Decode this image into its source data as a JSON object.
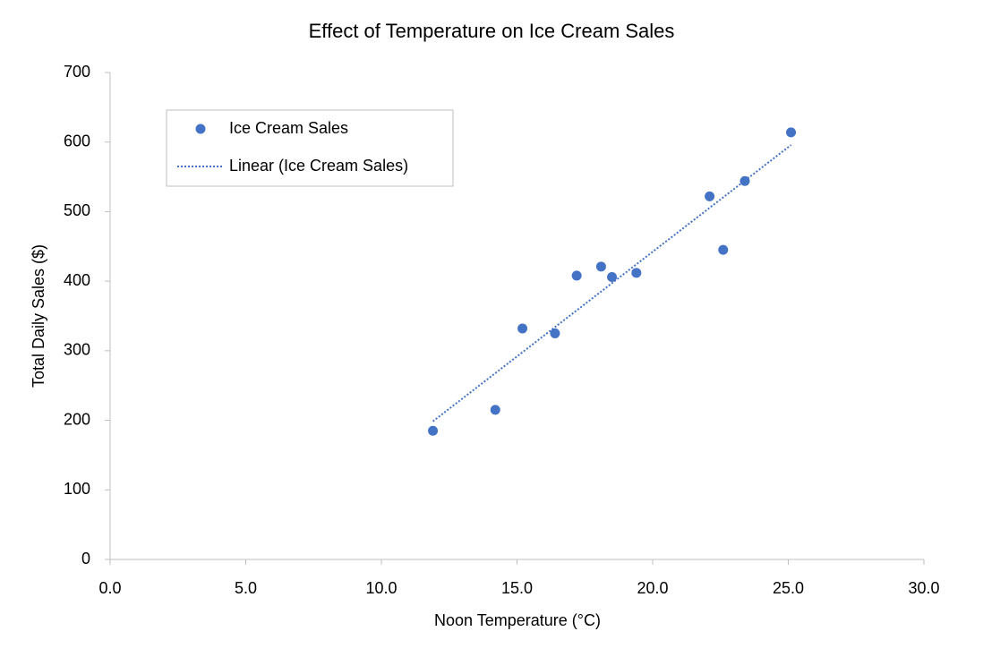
{
  "chart_data": {
    "type": "scatter",
    "title": "Effect of Temperature on Ice Cream Sales",
    "x_label": "Noon Temperature (°C)",
    "y_label": "Total Daily Sales ($)",
    "series": [
      {
        "name": "Ice Cream Sales",
        "color": "#4472c4",
        "x": [
          14.2,
          16.4,
          11.9,
          15.2,
          18.5,
          22.1,
          19.4,
          25.1,
          23.4,
          18.1,
          22.6,
          17.2
        ],
        "values": [
          215,
          325,
          185,
          332,
          406,
          522,
          412,
          614,
          544,
          421,
          445,
          408
        ]
      }
    ],
    "trendline": {
      "name": "Linear (Ice Cream Sales)",
      "fit": "linear",
      "color": "#4472c4"
    },
    "xlim": [
      0,
      30
    ],
    "xticks": [
      {
        "value": 0,
        "label": "0.0"
      },
      {
        "value": 5,
        "label": "5.0"
      },
      {
        "value": 10,
        "label": "10.0"
      },
      {
        "value": 15,
        "label": "15.0"
      },
      {
        "value": 20,
        "label": "20.0"
      },
      {
        "value": 25,
        "label": "25.0"
      },
      {
        "value": 30,
        "label": "30.0"
      }
    ],
    "ylim": [
      0,
      700
    ],
    "yticks": [
      0,
      100,
      200,
      300,
      400,
      500,
      600,
      700
    ],
    "grid": false,
    "legend": "top-left"
  }
}
